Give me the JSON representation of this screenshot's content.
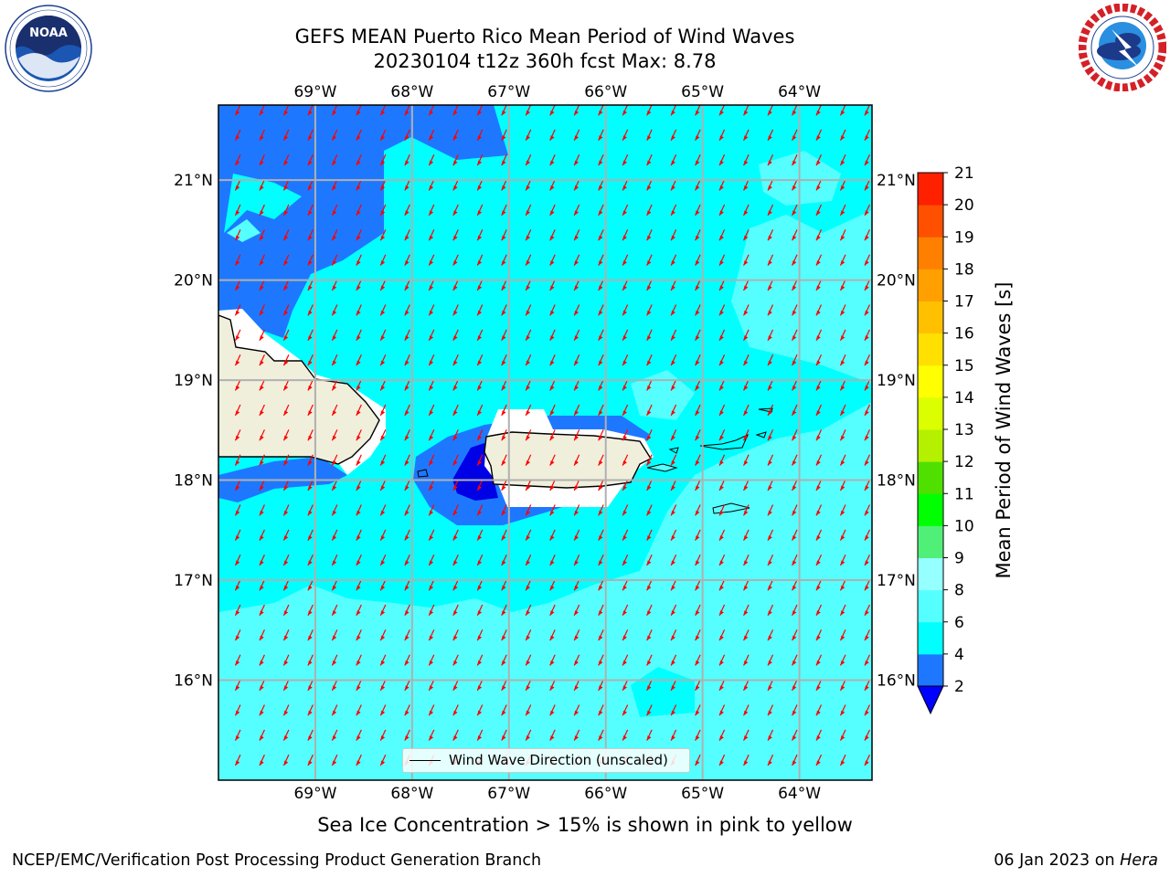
{
  "header": {
    "title_line1": "GEFS MEAN Puerto Rico Mean Period of Wind Waves",
    "title_line2": "20230104 t12z 360h fcst   Max: 8.78"
  },
  "logos": {
    "left": {
      "icon": "noaa-logo-icon",
      "text": "NOAA",
      "ring_text": "NATIONAL OCEANIC AND ATMOSPHERIC ADMINISTRATION · U.S. DEPARTMENT OF COMMERCE"
    },
    "right": {
      "icon": "nws-logo-icon",
      "ring_text": "NATIONAL WEATHER SERVICE"
    }
  },
  "map": {
    "lon_range": [
      -70.0,
      -63.25
    ],
    "lat_range": [
      15.0,
      21.75
    ],
    "lon_ticks": [
      {
        "value": -69,
        "label": "69°W"
      },
      {
        "value": -68,
        "label": "68°W"
      },
      {
        "value": -67,
        "label": "67°W"
      },
      {
        "value": -66,
        "label": "66°W"
      },
      {
        "value": -65,
        "label": "65°W"
      },
      {
        "value": -64,
        "label": "64°W"
      }
    ],
    "lat_ticks": [
      {
        "value": 21,
        "label": "21°N"
      },
      {
        "value": 20,
        "label": "20°N"
      },
      {
        "value": 19,
        "label": "19°N"
      },
      {
        "value": 18,
        "label": "18°N"
      },
      {
        "value": 17,
        "label": "17°N"
      },
      {
        "value": 16,
        "label": "16°N"
      }
    ],
    "gridlines": true,
    "arrow_color": "#ff0000",
    "arrow_direction": "toward south-southwest",
    "arrow_spacing_deg": 0.25,
    "field_colors": {
      "2-4": "#1e78ff",
      "4-6": "#00ffff",
      "6-8": "#55ffff",
      "below-2": "#0000e6",
      "land": "#f0efdc"
    },
    "legend_label": "Wind Wave Direction (unscaled)"
  },
  "colorbar": {
    "title": "Mean Period of Wind Waves [s]",
    "ticks": [
      "2",
      "4",
      "6",
      "8",
      "9",
      "10",
      "11",
      "12",
      "13",
      "14",
      "15",
      "16",
      "17",
      "18",
      "19",
      "20",
      "21"
    ],
    "colors": [
      "#1e78ff",
      "#00ffff",
      "#55ffff",
      "#96ffff",
      "#50f078",
      "#00ff00",
      "#50e000",
      "#b4f000",
      "#dcff00",
      "#ffff00",
      "#ffe000",
      "#ffc000",
      "#ffa000",
      "#ff8000",
      "#ff5000",
      "#ff2000"
    ],
    "under_color": "#0000ff"
  },
  "subtitle": "Sea Ice Concentration > 15% is shown in pink to yellow",
  "footer": {
    "left": "NCEP/EMC/Verification Post Processing Product Generation Branch",
    "right_date": "06 Jan 2023 on",
    "right_host": "Hera"
  }
}
